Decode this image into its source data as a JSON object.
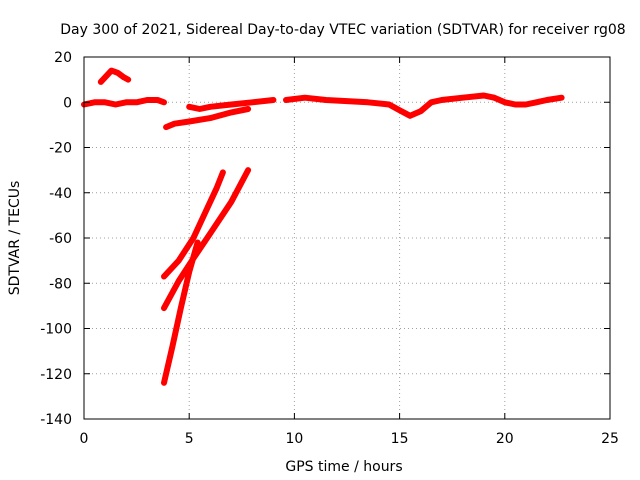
{
  "chart_data": {
    "type": "line",
    "title": "Day 300 of 2021, Sidereal Day-to-day VTEC variation (SDTVAR) for receiver rg08",
    "xlabel": "GPS time / hours",
    "ylabel": "SDTVAR / TECUs",
    "xlim": [
      0,
      25
    ],
    "ylim": [
      -140,
      20
    ],
    "xticks": [
      0,
      5,
      10,
      15,
      20,
      25
    ],
    "yticks": [
      -140,
      -120,
      -100,
      -80,
      -60,
      -40,
      -20,
      0,
      20
    ],
    "grid": true,
    "color": "#ff0000",
    "series": [
      {
        "name": "trace-main-0-4",
        "points": [
          [
            0.0,
            -1
          ],
          [
            0.5,
            0
          ],
          [
            1.0,
            0
          ],
          [
            1.5,
            -1
          ],
          [
            2.0,
            0
          ],
          [
            2.5,
            0
          ],
          [
            3.0,
            1
          ],
          [
            3.5,
            1
          ],
          [
            3.8,
            0
          ]
        ]
      },
      {
        "name": "trace-arc-1-2",
        "points": [
          [
            0.8,
            9
          ],
          [
            1.0,
            11
          ],
          [
            1.3,
            14
          ],
          [
            1.6,
            13
          ],
          [
            1.9,
            11
          ],
          [
            2.1,
            10
          ]
        ]
      },
      {
        "name": "trace-lower-4-8",
        "points": [
          [
            3.9,
            -11
          ],
          [
            4.3,
            -9.5
          ],
          [
            5.0,
            -8.5
          ],
          [
            6.0,
            -7
          ],
          [
            7.0,
            -4.5
          ],
          [
            7.8,
            -3
          ]
        ]
      },
      {
        "name": "trace-mid-5-9",
        "points": [
          [
            5.0,
            -2
          ],
          [
            5.5,
            -3
          ],
          [
            6.0,
            -2
          ],
          [
            7.0,
            -1
          ],
          [
            8.0,
            0
          ],
          [
            9.0,
            1
          ]
        ]
      },
      {
        "name": "trace-main-10-23",
        "points": [
          [
            9.6,
            1
          ],
          [
            10.5,
            2
          ],
          [
            11.5,
            1
          ],
          [
            12.5,
            0.5
          ],
          [
            13.5,
            0
          ],
          [
            14.5,
            -1
          ],
          [
            15.0,
            -3.5
          ],
          [
            15.5,
            -6
          ],
          [
            16.0,
            -4
          ],
          [
            16.5,
            0
          ],
          [
            17.0,
            1
          ],
          [
            18.0,
            2
          ],
          [
            19.0,
            3
          ],
          [
            19.5,
            2
          ],
          [
            20.0,
            0
          ],
          [
            20.5,
            -1
          ],
          [
            21.0,
            -1
          ],
          [
            21.5,
            0
          ],
          [
            22.0,
            1
          ],
          [
            22.7,
            2
          ]
        ]
      },
      {
        "name": "trace-steep-a",
        "points": [
          [
            3.8,
            -77
          ],
          [
            4.5,
            -70
          ],
          [
            5.2,
            -60
          ],
          [
            5.8,
            -48
          ],
          [
            6.3,
            -38
          ],
          [
            6.6,
            -31
          ]
        ]
      },
      {
        "name": "trace-steep-b",
        "points": [
          [
            3.8,
            -91
          ],
          [
            4.5,
            -79
          ],
          [
            5.2,
            -69
          ],
          [
            6.0,
            -58
          ],
          [
            7.0,
            -44
          ],
          [
            7.8,
            -30
          ]
        ]
      },
      {
        "name": "trace-steep-c",
        "points": [
          [
            3.8,
            -124
          ],
          [
            4.2,
            -108
          ],
          [
            4.6,
            -91
          ],
          [
            5.0,
            -75
          ],
          [
            5.4,
            -62
          ]
        ]
      }
    ]
  }
}
